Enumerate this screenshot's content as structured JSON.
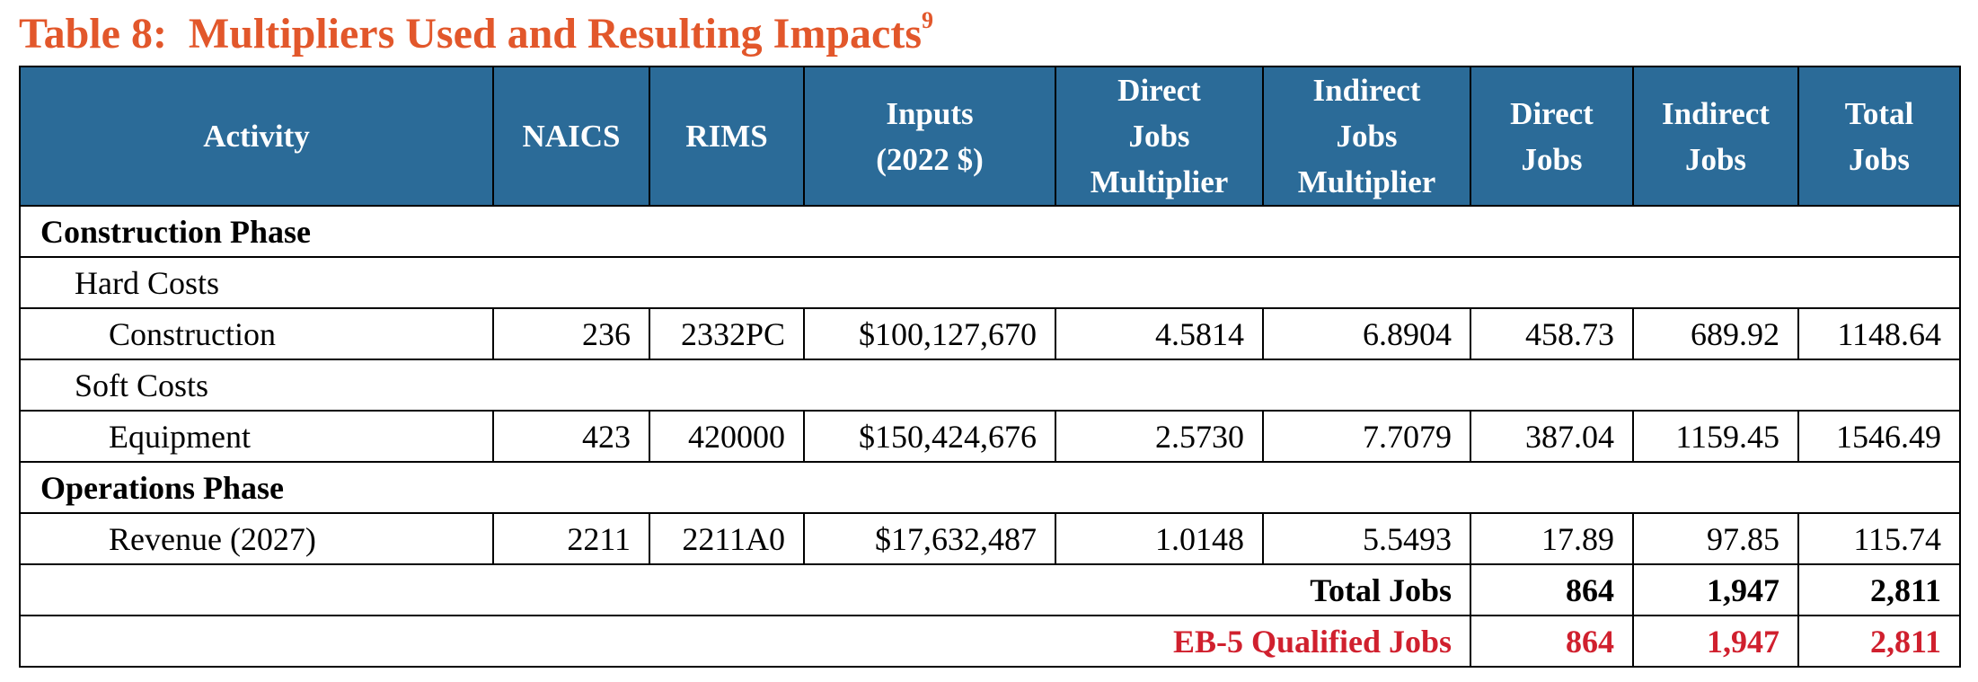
{
  "title": "Table 8:  Multipliers Used and Resulting Impacts",
  "title_footnote": "9",
  "table": {
    "columns": [
      "Activity",
      "NAICS",
      "RIMS",
      "Inputs\n(2022 $)",
      "Direct\nJobs\nMultiplier",
      "Indirect\nJobs\nMultiplier",
      "Direct\nJobs",
      "Indirect\nJobs",
      "Total\nJobs"
    ],
    "phases": [
      {
        "name": "Construction Phase",
        "groups": [
          {
            "name": "Hard Costs",
            "items": [
              {
                "label": "Construction",
                "cells": [
                  "236",
                  "2332PC",
                  "$100,127,670",
                  "4.5814",
                  "6.8904",
                  "458.73",
                  "689.92",
                  "1148.64"
                ]
              }
            ]
          },
          {
            "name": "Soft Costs",
            "items": [
              {
                "label": "Equipment",
                "cells": [
                  "423",
                  "420000",
                  "$150,424,676",
                  "2.5730",
                  "7.7079",
                  "387.04",
                  "1159.45",
                  "1546.49"
                ]
              }
            ]
          }
        ]
      },
      {
        "name": "Operations Phase",
        "items": [
          {
            "label": "Revenue (2027)",
            "cells": [
              "2211",
              "2211A0",
              "$17,632,487",
              "1.0148",
              "5.5493",
              "17.89",
              "97.85",
              "115.74"
            ]
          }
        ]
      }
    ],
    "totals": [
      {
        "label": "Total Jobs",
        "cells": [
          "864",
          "1,947",
          "2,811"
        ]
      },
      {
        "label": "EB-5 Qualified Jobs",
        "cells": [
          "864",
          "1,947",
          "2,811"
        ]
      }
    ]
  }
}
